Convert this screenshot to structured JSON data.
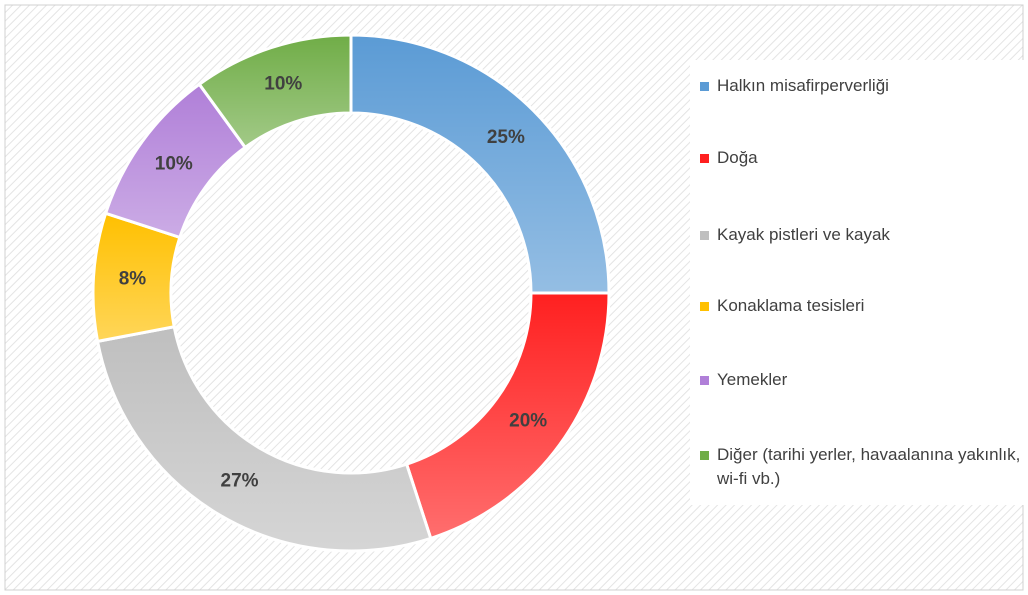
{
  "chart_data": {
    "type": "donut",
    "categories": [
      "Halkın misafirperverliği",
      "Doğa",
      "Kayak pistleri ve kayak",
      "Konaklama tesisleri",
      "Yemekler",
      "Diğer (tarihi yerler, havaalanına yakınlık, wi-fi vb.)"
    ],
    "values": [
      25,
      20,
      27,
      8,
      10,
      10
    ],
    "value_labels": [
      "25%",
      "20%",
      "27%",
      "8%",
      "10%",
      "10%"
    ],
    "colors": [
      "#5b9bd5",
      "#ff2020",
      "#bfbfbf",
      "#ffc000",
      "#b07fd8",
      "#70ad47"
    ],
    "legend": "right"
  }
}
